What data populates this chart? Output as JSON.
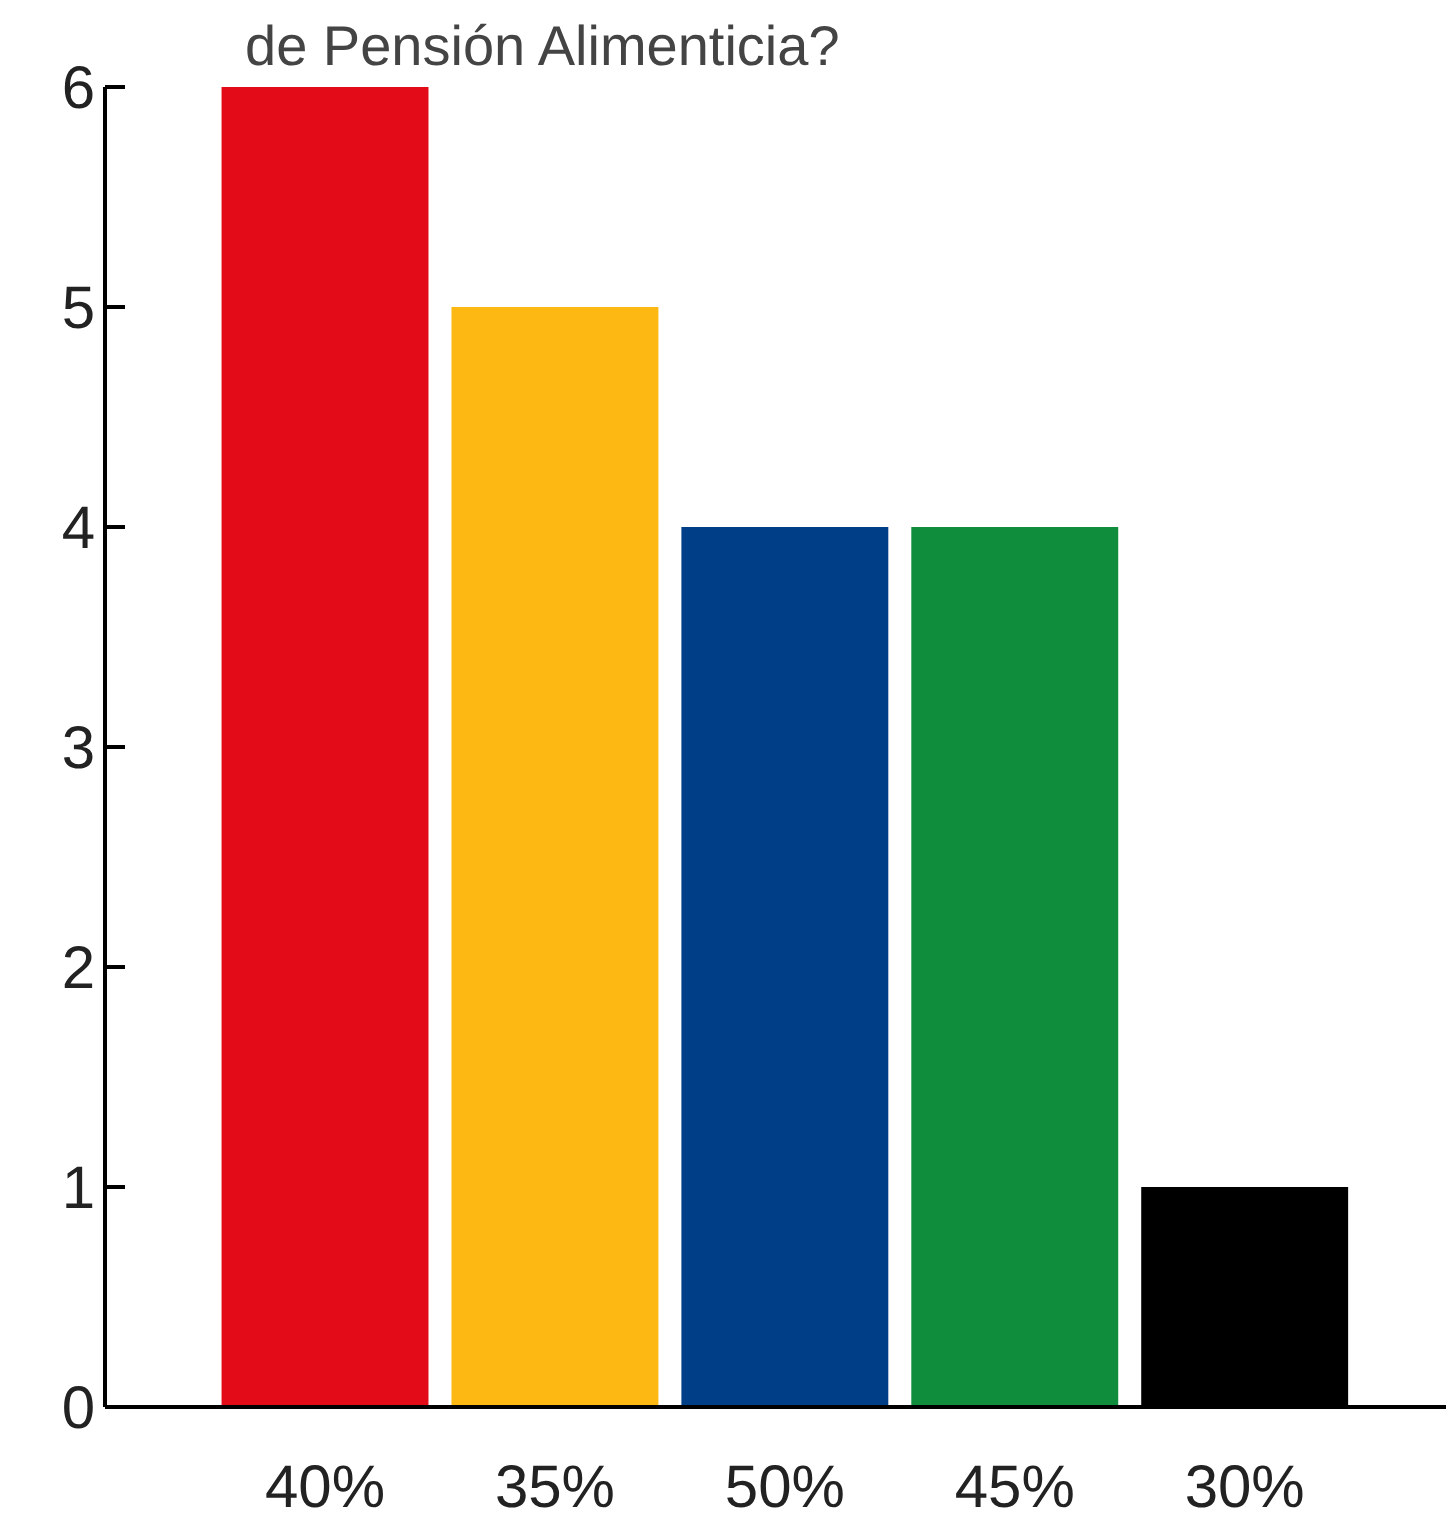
{
  "chart_data": {
    "type": "bar",
    "title": "de Pensión Alimenticia?",
    "categories": [
      "40%",
      "35%",
      "50%",
      "45%",
      "30%"
    ],
    "values": [
      6,
      5,
      4,
      4,
      1
    ],
    "colors": [
      "#e30b17",
      "#fdb813",
      "#003f87",
      "#0f8c3c",
      "#000000"
    ],
    "ylim": [
      0,
      6
    ],
    "yticks": [
      0,
      1,
      2,
      3,
      4,
      5,
      6
    ],
    "grid": false
  }
}
